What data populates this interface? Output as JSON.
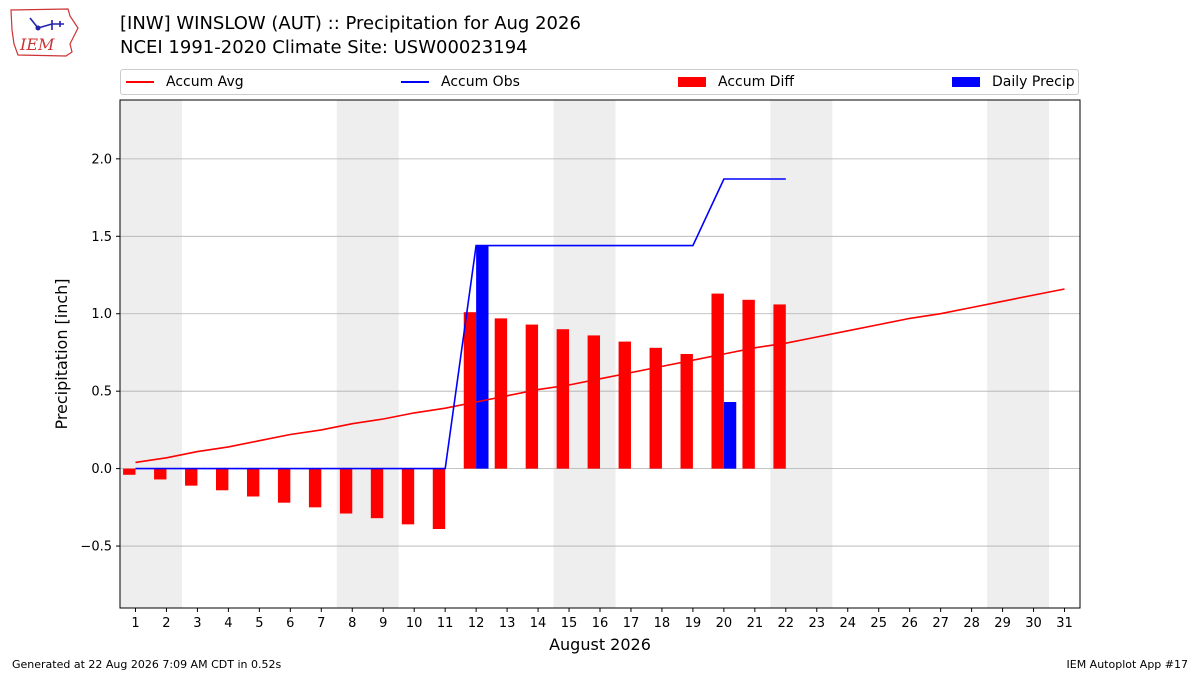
{
  "header": {
    "title_line1": "[INW] WINSLOW (AUT) :: Precipitation for Aug 2026",
    "title_line2": "NCEI 1991-2020 Climate Site: USW00023194"
  },
  "logo": {
    "text": "IEM",
    "icon": "iowa-state-outline-icon"
  },
  "footer": {
    "generated": "Generated at 22 Aug 2026 7:09 AM CDT in 0.52s",
    "app": "IEM Autoplot App #17"
  },
  "colors": {
    "avg": "#ff0000",
    "obs": "#0000ff",
    "diff": "#ff0000",
    "daily": "#0000ff",
    "weekend": "#eeeeee",
    "grid": "#b0b0b0"
  },
  "chart_data": {
    "type": "bar",
    "xlabel": "August 2026",
    "ylabel": "Precipitation [inch]",
    "xlim": [
      0.5,
      31.5
    ],
    "ylim": [
      -0.9,
      2.38
    ],
    "yticks": [
      -0.5,
      0.0,
      0.5,
      1.0,
      1.5,
      2.0
    ],
    "ytick_labels": [
      "−0.5",
      "0.0",
      "0.5",
      "1.0",
      "1.5",
      "2.0"
    ],
    "xticks": [
      1,
      2,
      3,
      4,
      5,
      6,
      7,
      8,
      9,
      10,
      11,
      12,
      13,
      14,
      15,
      16,
      17,
      18,
      19,
      20,
      21,
      22,
      23,
      24,
      25,
      26,
      27,
      28,
      29,
      30,
      31
    ],
    "grid": "horizontal",
    "legend_position": "top",
    "weekend_bands": [
      [
        1,
        2
      ],
      [
        8,
        9
      ],
      [
        15,
        16
      ],
      [
        22,
        23
      ],
      [
        29,
        30
      ]
    ],
    "series": [
      {
        "name": "Accum Avg",
        "kind": "line",
        "x": [
          1,
          2,
          3,
          4,
          5,
          6,
          7,
          8,
          9,
          10,
          11,
          12,
          13,
          14,
          15,
          16,
          17,
          18,
          19,
          20,
          21,
          22,
          23,
          24,
          25,
          26,
          27,
          28,
          29,
          30,
          31
        ],
        "values": [
          0.04,
          0.07,
          0.11,
          0.14,
          0.18,
          0.22,
          0.25,
          0.29,
          0.32,
          0.36,
          0.39,
          0.43,
          0.47,
          0.51,
          0.54,
          0.58,
          0.62,
          0.66,
          0.7,
          0.74,
          0.78,
          0.81,
          0.85,
          0.89,
          0.93,
          0.97,
          1.0,
          1.04,
          1.08,
          1.12,
          1.16
        ]
      },
      {
        "name": "Accum Obs",
        "kind": "line",
        "x": [
          1,
          2,
          3,
          4,
          5,
          6,
          7,
          8,
          9,
          10,
          11,
          12,
          13,
          14,
          15,
          16,
          17,
          18,
          19,
          20,
          21,
          22
        ],
        "values": [
          0,
          0,
          0,
          0,
          0,
          0,
          0,
          0,
          0,
          0,
          0,
          1.44,
          1.44,
          1.44,
          1.44,
          1.44,
          1.44,
          1.44,
          1.44,
          1.87,
          1.87,
          1.87
        ]
      },
      {
        "name": "Accum Diff",
        "kind": "bar",
        "x": [
          1,
          2,
          3,
          4,
          5,
          6,
          7,
          8,
          9,
          10,
          11,
          12,
          13,
          14,
          15,
          16,
          17,
          18,
          19,
          20,
          21,
          22
        ],
        "values": [
          -0.04,
          -0.07,
          -0.11,
          -0.14,
          -0.18,
          -0.22,
          -0.25,
          -0.29,
          -0.32,
          -0.36,
          -0.39,
          1.01,
          0.97,
          0.93,
          0.9,
          0.86,
          0.82,
          0.78,
          0.74,
          1.13,
          1.09,
          1.06
        ]
      },
      {
        "name": "Daily Precip",
        "kind": "bar",
        "x": [
          12,
          20
        ],
        "values": [
          1.44,
          0.43
        ]
      }
    ]
  }
}
